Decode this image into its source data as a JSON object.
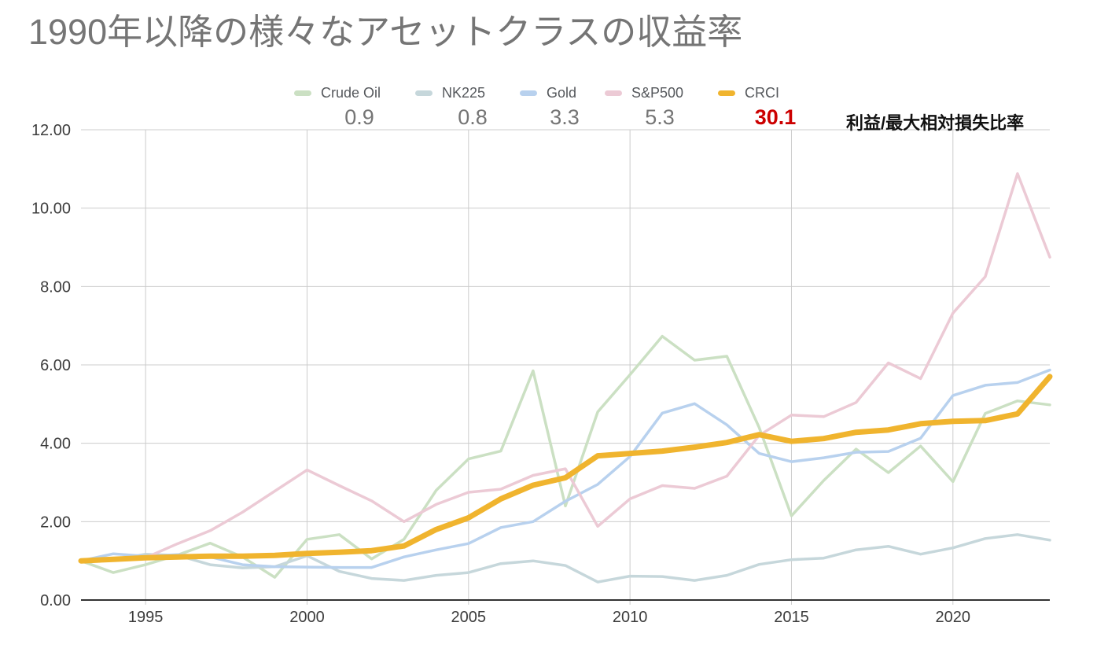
{
  "title": "1990年以降の様々なアセットクラスの収益率",
  "ratio_label": "利益/最大相対損失比率",
  "ratio_highlight_color": "#cc0000",
  "legend": [
    {
      "label": "Crude Oil",
      "ratio": "0.9",
      "color": "#cbe0c3",
      "highlight": false
    },
    {
      "label": "NK225",
      "ratio": "0.8",
      "color": "#c6d7db",
      "highlight": false
    },
    {
      "label": "Gold",
      "ratio": "3.3",
      "color": "#b8d1ee",
      "highlight": false
    },
    {
      "label": "S&P500",
      "ratio": "5.3",
      "color": "#eccad5",
      "highlight": false
    },
    {
      "label": "CRCI",
      "ratio": "30.1",
      "color": "#f0b42e",
      "highlight": true
    }
  ],
  "chart_data": {
    "type": "line",
    "title": "1990年以降の様々なアセットクラスの収益率",
    "xlabel": "",
    "ylabel": "",
    "x": [
      1993,
      1994,
      1995,
      1996,
      1997,
      1998,
      1999,
      2000,
      2001,
      2002,
      2003,
      2004,
      2005,
      2006,
      2007,
      2008,
      2009,
      2010,
      2011,
      2012,
      2013,
      2014,
      2015,
      2016,
      2017,
      2018,
      2019,
      2020,
      2021,
      2022,
      2023
    ],
    "series": [
      {
        "name": "Crude Oil",
        "color": "#cbe0c3",
        "line_width": 3.5,
        "values": [
          1.0,
          0.7,
          0.9,
          1.15,
          1.45,
          1.1,
          0.58,
          1.55,
          1.67,
          1.05,
          1.55,
          2.8,
          3.6,
          3.8,
          5.85,
          2.4,
          4.8,
          5.75,
          6.73,
          6.12,
          6.22,
          4.4,
          2.15,
          3.05,
          3.85,
          3.25,
          3.93,
          3.02,
          4.76,
          5.08,
          4.98
        ]
      },
      {
        "name": "NK225",
        "color": "#c6d7db",
        "line_width": 3.5,
        "values": [
          1.0,
          1.03,
          1.17,
          1.14,
          0.9,
          0.82,
          0.85,
          1.13,
          0.73,
          0.55,
          0.5,
          0.63,
          0.7,
          0.93,
          1.0,
          0.88,
          0.46,
          0.61,
          0.6,
          0.5,
          0.63,
          0.91,
          1.03,
          1.07,
          1.28,
          1.37,
          1.17,
          1.33,
          1.57,
          1.67,
          1.53
        ]
      },
      {
        "name": "Gold",
        "color": "#b8d1ee",
        "line_width": 3.5,
        "values": [
          1.0,
          1.18,
          1.12,
          1.16,
          1.1,
          0.9,
          0.85,
          0.84,
          0.83,
          0.83,
          1.1,
          1.28,
          1.44,
          1.85,
          2.0,
          2.52,
          2.95,
          3.66,
          4.77,
          5.01,
          4.47,
          3.74,
          3.53,
          3.63,
          3.77,
          3.79,
          4.13,
          5.22,
          5.48,
          5.55,
          5.87
        ]
      },
      {
        "name": "S&P500",
        "color": "#eccad5",
        "line_width": 3.5,
        "values": [
          1.0,
          1.02,
          1.08,
          1.44,
          1.77,
          2.24,
          2.78,
          3.32,
          2.92,
          2.53,
          2.0,
          2.44,
          2.75,
          2.83,
          3.18,
          3.35,
          1.88,
          2.58,
          2.92,
          2.85,
          3.16,
          4.2,
          4.72,
          4.68,
          5.04,
          6.05,
          5.65,
          7.32,
          8.25,
          10.88,
          8.75
        ]
      },
      {
        "name": "CRCI",
        "color": "#f0b42e",
        "line_width": 7,
        "values": [
          1.0,
          1.04,
          1.08,
          1.1,
          1.12,
          1.12,
          1.14,
          1.19,
          1.22,
          1.26,
          1.38,
          1.8,
          2.1,
          2.58,
          2.93,
          3.12,
          3.68,
          3.74,
          3.8,
          3.9,
          4.02,
          4.22,
          4.05,
          4.12,
          4.28,
          4.34,
          4.5,
          4.56,
          4.58,
          4.75,
          5.7
        ]
      }
    ],
    "x_ticks": [
      1995,
      2000,
      2005,
      2010,
      2015,
      2020
    ],
    "y_ticks": [
      "0.00",
      "2.00",
      "4.00",
      "6.00",
      "8.00",
      "10.00",
      "12.00"
    ],
    "xlim": [
      1993,
      2023
    ],
    "ylim": [
      0,
      12
    ],
    "grid": true,
    "legend_position": "top",
    "gridline_color": "#cccccc",
    "axis_line_color": "#333333",
    "tick_label_color": "#3c3c3c"
  }
}
